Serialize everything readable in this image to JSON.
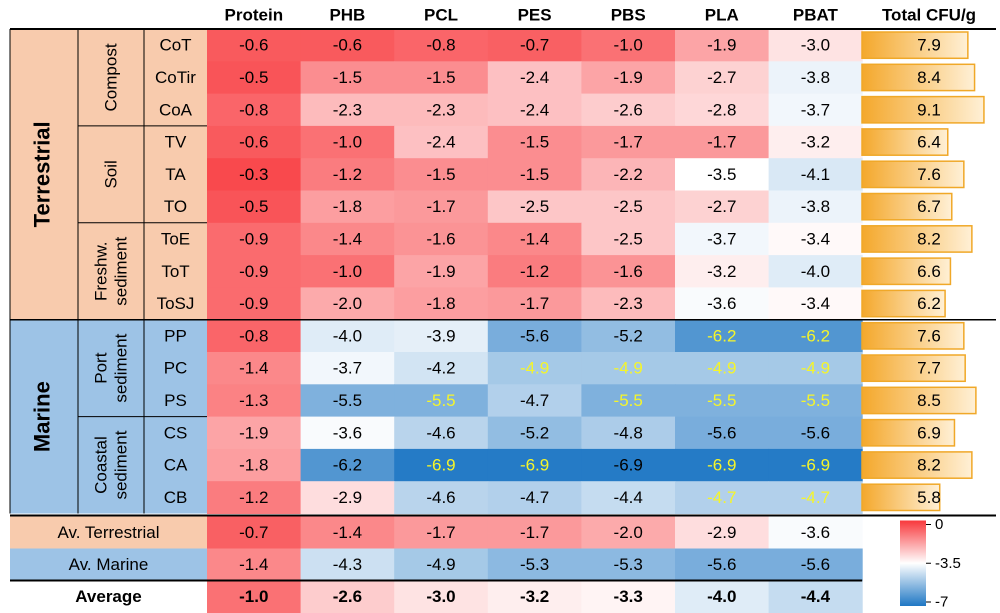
{
  "chart_data": {
    "type": "heatmap",
    "columns": [
      "Protein",
      "PHB",
      "PCL",
      "PES",
      "PBS",
      "PLA",
      "PBAT"
    ],
    "total_header": "Total CFU/g",
    "total_max": 10,
    "domains": [
      {
        "label": "Terrestrial",
        "color": "#f8cbad",
        "groups": [
          {
            "label": [
              "Compost"
            ],
            "rows": [
              {
                "label": "CoT",
                "values": [
                  -0.6,
                  -0.6,
                  -0.8,
                  -0.7,
                  -1.0,
                  -1.9,
                  -3.0
                ],
                "total": 7.9
              },
              {
                "label": "CoTir",
                "values": [
                  -0.5,
                  -1.5,
                  -1.5,
                  -2.4,
                  -1.9,
                  -2.7,
                  -3.8
                ],
                "total": 8.4
              },
              {
                "label": "CoA",
                "values": [
                  -0.8,
                  -2.3,
                  -2.3,
                  -2.4,
                  -2.6,
                  -2.8,
                  -3.7
                ],
                "total": 9.1
              }
            ]
          },
          {
            "label": [
              "Soil"
            ],
            "rows": [
              {
                "label": "TV",
                "values": [
                  -0.6,
                  -1.0,
                  -2.4,
                  -1.5,
                  -1.7,
                  -1.7,
                  -3.2
                ],
                "total": 6.4
              },
              {
                "label": "TA",
                "values": [
                  -0.3,
                  -1.2,
                  -1.5,
                  -1.5,
                  -2.2,
                  -3.5,
                  -4.1
                ],
                "total": 7.6
              },
              {
                "label": "TO",
                "values": [
                  -0.5,
                  -1.8,
                  -1.7,
                  -2.5,
                  -2.5,
                  -2.7,
                  -3.8
                ],
                "total": 6.7
              }
            ]
          },
          {
            "label": [
              "Freshw.",
              "sediment"
            ],
            "rows": [
              {
                "label": "ToE",
                "values": [
                  -0.9,
                  -1.4,
                  -1.6,
                  -1.4,
                  -2.5,
                  -3.7,
                  -3.4
                ],
                "total": 8.2
              },
              {
                "label": "ToT",
                "values": [
                  -0.9,
                  -1.0,
                  -1.9,
                  -1.2,
                  -1.6,
                  -3.2,
                  -4.0
                ],
                "total": 6.6
              },
              {
                "label": "ToSJ",
                "values": [
                  -0.9,
                  -2.0,
                  -1.8,
                  -1.7,
                  -2.3,
                  -3.6,
                  -3.4
                ],
                "total": 6.2
              }
            ]
          }
        ]
      },
      {
        "label": "Marine",
        "color": "#9dc3e6",
        "groups": [
          {
            "label": [
              "Port",
              "sediment"
            ],
            "rows": [
              {
                "label": "PP",
                "values": [
                  -0.8,
                  -4.0,
                  -3.9,
                  -5.6,
                  -5.2,
                  -6.2,
                  -6.2
                ],
                "highlight": [
                  5,
                  6
                ],
                "total": 7.6
              },
              {
                "label": "PC",
                "values": [
                  -1.4,
                  -3.7,
                  -4.2,
                  -4.9,
                  -4.9,
                  -4.9,
                  -4.9
                ],
                "highlight": [
                  3,
                  4,
                  5,
                  6
                ],
                "total": 7.7
              },
              {
                "label": "PS",
                "values": [
                  -1.3,
                  -5.5,
                  -5.5,
                  -4.7,
                  -5.5,
                  -5.5,
                  -5.5
                ],
                "highlight": [
                  2,
                  4,
                  5,
                  6
                ],
                "total": 8.5
              }
            ]
          },
          {
            "label": [
              "Coastal",
              "sediment"
            ],
            "rows": [
              {
                "label": "CS",
                "values": [
                  -1.9,
                  -3.6,
                  -4.6,
                  -5.2,
                  -4.8,
                  -5.6,
                  -5.6
                ],
                "total": 6.9
              },
              {
                "label": "CA",
                "values": [
                  -1.8,
                  -6.2,
                  -6.9,
                  -6.9,
                  -6.9,
                  -6.9,
                  -6.9
                ],
                "highlight": [
                  2,
                  3,
                  5,
                  6
                ],
                "total": 8.2
              },
              {
                "label": "CB",
                "values": [
                  -1.2,
                  -2.9,
                  -4.6,
                  -4.7,
                  -4.4,
                  -4.7,
                  -4.7
                ],
                "highlight": [
                  5,
                  6
                ],
                "total": 5.8
              }
            ]
          }
        ]
      }
    ],
    "averages": [
      {
        "label": "Av. Terrestrial",
        "color": "#f8cbad",
        "values": [
          -0.7,
          -1.4,
          -1.7,
          -1.7,
          -2.0,
          -2.9,
          -3.6
        ]
      },
      {
        "label": "Av. Marine",
        "color": "#9dc3e6",
        "values": [
          -1.4,
          -4.3,
          -4.9,
          -5.3,
          -5.3,
          -5.6,
          -5.6
        ]
      },
      {
        "label": "Average",
        "bold": true,
        "values": [
          -1.0,
          -2.6,
          -3.0,
          -3.2,
          -3.3,
          -4.0,
          -4.4
        ]
      }
    ],
    "color_scale": {
      "min": -7,
      "mid": -3.5,
      "max": 0,
      "colors": {
        "max": "#f8383c",
        "mid": "#ffffff",
        "min": "#1f77c4"
      },
      "tick_labels": [
        "0",
        "-3.5",
        "-7"
      ]
    },
    "colors": {
      "highlight_text": "#f5f52a",
      "total_bar_start": "#f4a82c",
      "total_bar_end": "#fff0d6",
      "total_bar_border": "#f0a828"
    }
  }
}
